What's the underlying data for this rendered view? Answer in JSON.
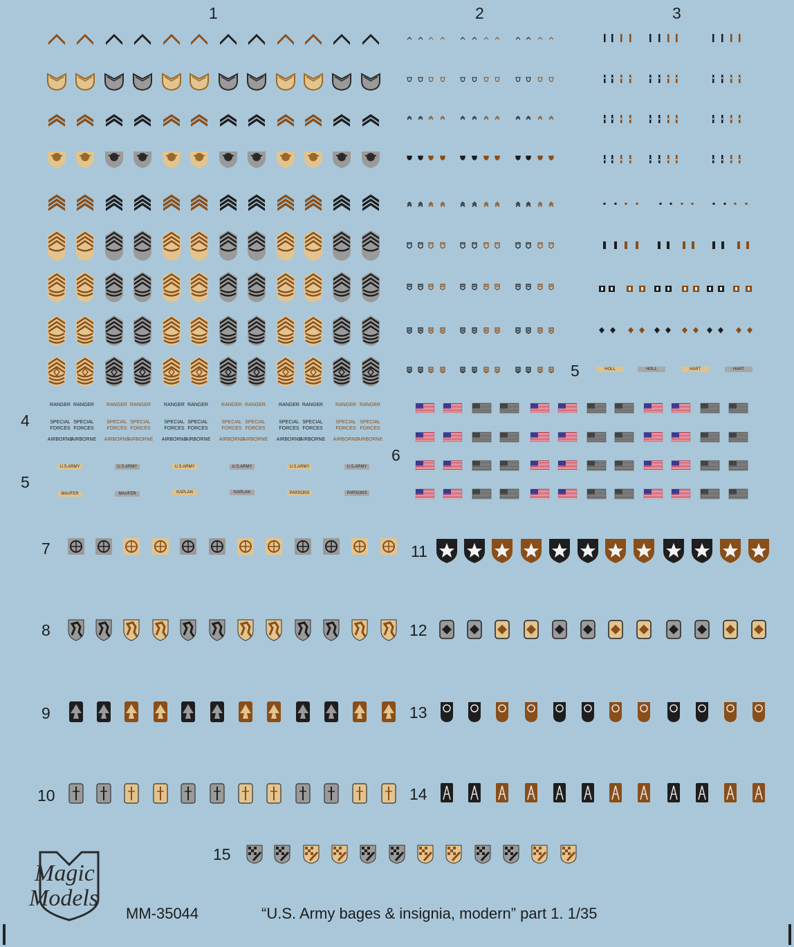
{
  "section_numbers": {
    "s1": "1",
    "s2": "2",
    "s3": "3",
    "s4": "4",
    "s5a": "5",
    "s5b": "5",
    "s6": "6",
    "s7": "7",
    "s8": "8",
    "s9": "9",
    "s10": "10",
    "s11": "11",
    "s12": "12",
    "s13": "13",
    "s14": "14",
    "s15": "15"
  },
  "tabs": {
    "ranger": "RANGER",
    "special_forces": "SPECIAL FORCES",
    "airborne": "AIRBORNE"
  },
  "name_strips": {
    "usarmy": "U.S.ARMY",
    "maufer": "MAUFER",
    "kaplan": "KAPLAN",
    "parsons": "PARSONS",
    "holl": "HOLL",
    "hart": "HART"
  },
  "logo": {
    "line1": "Magic",
    "line2": "Models"
  },
  "product_code": "MM-35044",
  "title": "“U.S. Army bages & insignia, modern” part 1. 1/35",
  "colors": {
    "background": "#a9c7d9",
    "tan": "#e3c48e",
    "brown": "#8a4e19",
    "grey": "#9a9a9a",
    "black": "#1e1e1e"
  }
}
